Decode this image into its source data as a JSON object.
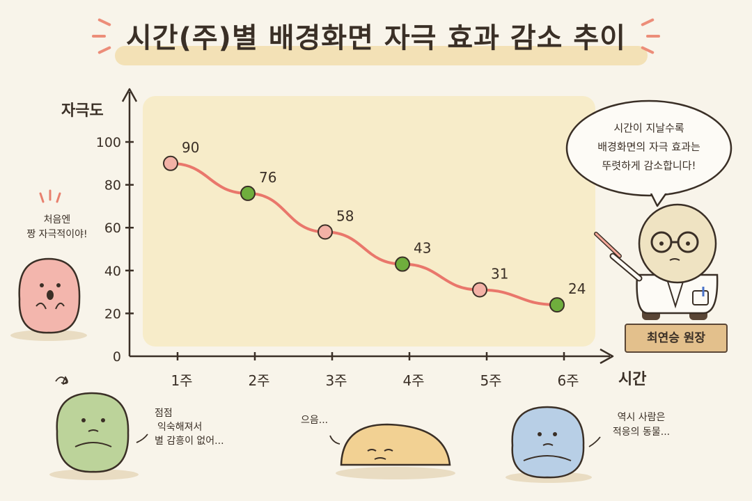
{
  "title": "시간(주)별 배경화면 자극 효과 감소 추이",
  "doctor_speech": [
    "시간이 지날수록",
    "배경화면의 자극 효과는",
    "뚜렷하게 감소합니다!"
  ],
  "nameplate": "최연승 원장",
  "characters": {
    "pink": [
      "처음엔",
      "짱 자극적이야!"
    ],
    "green": [
      "점점",
      "익숙해져서",
      "별 감흥이 없어..."
    ],
    "yellow": [
      "으음..."
    ],
    "blue": [
      "역시 사람은",
      "적응의 동물..."
    ]
  },
  "colors": {
    "line": "#e9776b",
    "pink_marker": "#f3b2a6",
    "green_marker": "#6fae3d",
    "plot_bg": "#f7ecc9",
    "title_band": "#f3e1b6",
    "nameplate": "#e3c08c"
  },
  "chart_data": {
    "type": "line",
    "title": "시간(주)별 배경화면 자극 효과 감소 추이",
    "xlabel": "시간",
    "ylabel": "자극도",
    "categories": [
      "1주",
      "2주",
      "3주",
      "4주",
      "5주",
      "6주"
    ],
    "values": [
      90,
      76,
      58,
      43,
      31,
      24
    ],
    "data_labels": [
      "90",
      "76",
      "58",
      "43",
      "31",
      "24"
    ],
    "marker_colors": [
      "pink",
      "green",
      "pink",
      "green",
      "pink",
      "green"
    ],
    "yticks": [
      "0",
      "20",
      "40",
      "60",
      "80",
      "100"
    ],
    "ylim": [
      0,
      100
    ],
    "grid": false,
    "legend": "none"
  }
}
